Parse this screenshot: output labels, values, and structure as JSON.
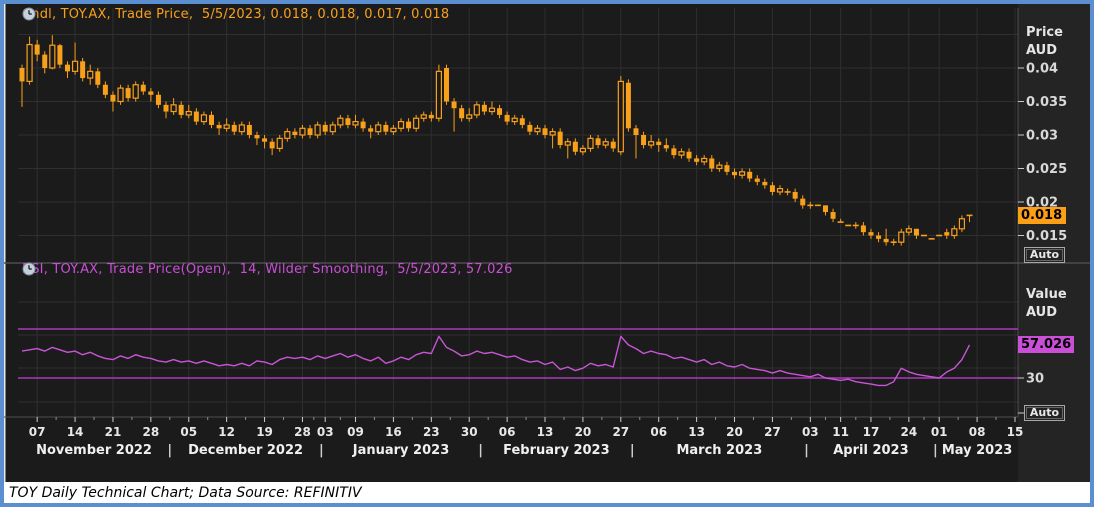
{
  "frame": {
    "caption": "TOY Daily Technical Chart; Data Source: REFINITIV"
  },
  "price_panel": {
    "legend": "Cndl, TOY.AX, Trade Price,  5/5/2023, 0.018, 0.018, 0.017, 0.018",
    "axis_title": "Price",
    "axis_currency": "AUD",
    "last_price": "0.018",
    "auto": "Auto"
  },
  "rsi_panel": {
    "legend": "RSI, TOY.AX, Trade Price(Open),  14, Wilder Smoothing,  5/5/2023, 57.026",
    "axis_title": "Value",
    "axis_currency": "AUD",
    "last_value": "57.026",
    "auto": "Auto"
  },
  "colors": {
    "background": "#1b1b1b",
    "axis_strip": "#242424",
    "grid": "#2f2f2f",
    "frame_border": "#5b8fd0",
    "candle_orange": "#f9a01b",
    "rsi_line": "#c855d6",
    "rsi_band": "#a93bb8",
    "axis_text": "#d9d9d9",
    "divider": "#4d4d4d",
    "badge_price_bg": "#fa9f16",
    "badge_rsi_bg": "#c94fd6"
  },
  "x_axis": {
    "day_ticks": [
      [
        "07",
        2
      ],
      [
        "14",
        7
      ],
      [
        "21",
        12
      ],
      [
        "28",
        17
      ],
      [
        "05",
        22
      ],
      [
        "12",
        27
      ],
      [
        "19",
        32
      ],
      [
        "28",
        37
      ],
      [
        "03",
        40
      ],
      [
        "09",
        44
      ],
      [
        "16",
        49
      ],
      [
        "23",
        54
      ],
      [
        "30",
        59
      ],
      [
        "06",
        64
      ],
      [
        "13",
        69
      ],
      [
        "20",
        74
      ],
      [
        "27",
        79
      ],
      [
        "06",
        84
      ],
      [
        "13",
        89
      ],
      [
        "20",
        94
      ],
      [
        "27",
        99
      ],
      [
        "03",
        104
      ],
      [
        "11",
        108
      ],
      [
        "17",
        112
      ],
      [
        "24",
        117
      ],
      [
        "01",
        121
      ],
      [
        "08",
        126
      ],
      [
        "15",
        131
      ]
    ],
    "months": [
      {
        "label": "November 2022",
        "start": 0,
        "end": 19
      },
      {
        "label": "December 2022",
        "start": 20,
        "end": 39
      },
      {
        "label": "January 2023",
        "start": 40,
        "end": 60
      },
      {
        "label": "February 2023",
        "start": 61,
        "end": 80
      },
      {
        "label": "March 2023",
        "start": 81,
        "end": 103
      },
      {
        "label": "April 2023",
        "start": 104,
        "end": 120
      },
      {
        "label": "May 2023",
        "start": 121,
        "end": 131
      }
    ]
  },
  "chart_data": [
    {
      "type": "candlestick",
      "title": "Cndl, TOY.AX, Trade Price, 5/5/2023, 0.018, 0.018, 0.017, 0.018",
      "ylabel": "Price AUD",
      "y_ticks": [
        0.04,
        0.035,
        0.03,
        0.025,
        0.02,
        0.015
      ],
      "grid_levels": [
        0.045,
        0.04,
        0.035,
        0.03,
        0.025,
        0.02,
        0.015
      ],
      "ylim": [
        0.012,
        0.0495
      ],
      "last_trade": {
        "date": "5/5/2023",
        "open": 0.018,
        "high": 0.018,
        "low": 0.017,
        "close": 0.018
      },
      "ohlc": [
        [
          0.04,
          0.0405,
          0.0342,
          0.038
        ],
        [
          0.038,
          0.0447,
          0.0375,
          0.0435
        ],
        [
          0.0435,
          0.0442,
          0.041,
          0.042
        ],
        [
          0.042,
          0.0425,
          0.0392,
          0.04
        ],
        [
          0.04,
          0.0449,
          0.0398,
          0.0434
        ],
        [
          0.0434,
          0.0436,
          0.04,
          0.0405
        ],
        [
          0.0405,
          0.041,
          0.0385,
          0.0395
        ],
        [
          0.0395,
          0.0438,
          0.039,
          0.041
        ],
        [
          0.041,
          0.0415,
          0.038,
          0.0385
        ],
        [
          0.0385,
          0.0405,
          0.0375,
          0.0395
        ],
        [
          0.0395,
          0.04,
          0.037,
          0.0375
        ],
        [
          0.0375,
          0.038,
          0.0355,
          0.036
        ],
        [
          0.036,
          0.0365,
          0.0335,
          0.035
        ],
        [
          0.035,
          0.0375,
          0.0345,
          0.037
        ],
        [
          0.037,
          0.0375,
          0.035,
          0.0355
        ],
        [
          0.0355,
          0.038,
          0.035,
          0.0375
        ],
        [
          0.0375,
          0.038,
          0.036,
          0.0365
        ],
        [
          0.0365,
          0.037,
          0.035,
          0.036
        ],
        [
          0.036,
          0.0365,
          0.034,
          0.0345
        ],
        [
          0.0345,
          0.035,
          0.0325,
          0.0335
        ],
        [
          0.0335,
          0.0355,
          0.033,
          0.0345
        ],
        [
          0.0345,
          0.035,
          0.0325,
          0.033
        ],
        [
          0.033,
          0.0345,
          0.0325,
          0.0335
        ],
        [
          0.0335,
          0.034,
          0.0315,
          0.032
        ],
        [
          0.032,
          0.0335,
          0.0315,
          0.033
        ],
        [
          0.033,
          0.0335,
          0.031,
          0.0315
        ],
        [
          0.0315,
          0.032,
          0.03,
          0.031
        ],
        [
          0.031,
          0.0325,
          0.0305,
          0.0315
        ],
        [
          0.0315,
          0.032,
          0.03,
          0.0305
        ],
        [
          0.0305,
          0.032,
          0.03,
          0.0315
        ],
        [
          0.0315,
          0.032,
          0.0295,
          0.03
        ],
        [
          0.03,
          0.0305,
          0.0285,
          0.0295
        ],
        [
          0.0295,
          0.03,
          0.028,
          0.029
        ],
        [
          0.029,
          0.0295,
          0.027,
          0.028
        ],
        [
          0.028,
          0.03,
          0.0275,
          0.0295
        ],
        [
          0.0295,
          0.031,
          0.029,
          0.0305
        ],
        [
          0.0305,
          0.031,
          0.0295,
          0.03
        ],
        [
          0.03,
          0.0315,
          0.0295,
          0.031
        ],
        [
          0.031,
          0.0315,
          0.0295,
          0.03
        ],
        [
          0.03,
          0.032,
          0.0295,
          0.0315
        ],
        [
          0.0315,
          0.032,
          0.03,
          0.0305
        ],
        [
          0.0305,
          0.032,
          0.03,
          0.0315
        ],
        [
          0.0315,
          0.033,
          0.031,
          0.0325
        ],
        [
          0.0325,
          0.033,
          0.031,
          0.0315
        ],
        [
          0.0315,
          0.033,
          0.031,
          0.032
        ],
        [
          0.032,
          0.0325,
          0.0305,
          0.031
        ],
        [
          0.031,
          0.0315,
          0.0295,
          0.0305
        ],
        [
          0.0305,
          0.032,
          0.03,
          0.0315
        ],
        [
          0.0315,
          0.032,
          0.03,
          0.0305
        ],
        [
          0.0305,
          0.0315,
          0.03,
          0.031
        ],
        [
          0.031,
          0.0325,
          0.0305,
          0.032
        ],
        [
          0.032,
          0.0325,
          0.0305,
          0.031
        ],
        [
          0.031,
          0.033,
          0.0305,
          0.0325
        ],
        [
          0.0325,
          0.0335,
          0.032,
          0.033
        ],
        [
          0.033,
          0.0335,
          0.032,
          0.0325
        ],
        [
          0.0325,
          0.0405,
          0.032,
          0.0395
        ],
        [
          0.04,
          0.0405,
          0.0345,
          0.035
        ],
        [
          0.035,
          0.0355,
          0.0305,
          0.034
        ],
        [
          0.034,
          0.0345,
          0.032,
          0.0325
        ],
        [
          0.0325,
          0.034,
          0.032,
          0.033
        ],
        [
          0.033,
          0.035,
          0.0325,
          0.0345
        ],
        [
          0.0345,
          0.035,
          0.033,
          0.0335
        ],
        [
          0.0335,
          0.035,
          0.033,
          0.034
        ],
        [
          0.034,
          0.0345,
          0.0325,
          0.033
        ],
        [
          0.033,
          0.0335,
          0.0315,
          0.032
        ],
        [
          0.032,
          0.033,
          0.0315,
          0.0325
        ],
        [
          0.0325,
          0.033,
          0.031,
          0.0315
        ],
        [
          0.0315,
          0.032,
          0.03,
          0.0305
        ],
        [
          0.0305,
          0.0315,
          0.03,
          0.031
        ],
        [
          0.031,
          0.0315,
          0.0295,
          0.03
        ],
        [
          0.03,
          0.031,
          0.028,
          0.0305
        ],
        [
          0.0305,
          0.031,
          0.028,
          0.0285
        ],
        [
          0.0285,
          0.0295,
          0.0265,
          0.029
        ],
        [
          0.029,
          0.0295,
          0.027,
          0.0275
        ],
        [
          0.0275,
          0.0285,
          0.027,
          0.028
        ],
        [
          0.028,
          0.03,
          0.0275,
          0.0295
        ],
        [
          0.0295,
          0.03,
          0.028,
          0.0285
        ],
        [
          0.0285,
          0.0295,
          0.028,
          0.029
        ],
        [
          0.029,
          0.0295,
          0.0275,
          0.028
        ],
        [
          0.0275,
          0.0388,
          0.027,
          0.038
        ],
        [
          0.0378,
          0.0383,
          0.0305,
          0.031
        ],
        [
          0.031,
          0.0315,
          0.0265,
          0.03
        ],
        [
          0.03,
          0.0305,
          0.028,
          0.0285
        ],
        [
          0.0285,
          0.03,
          0.028,
          0.029
        ],
        [
          0.029,
          0.0295,
          0.0275,
          0.0285
        ],
        [
          0.0285,
          0.0295,
          0.0275,
          0.028
        ],
        [
          0.028,
          0.0285,
          0.0265,
          0.027
        ],
        [
          0.027,
          0.028,
          0.0265,
          0.0275
        ],
        [
          0.0275,
          0.028,
          0.026,
          0.0265
        ],
        [
          0.0265,
          0.027,
          0.0255,
          0.026
        ],
        [
          0.026,
          0.027,
          0.0255,
          0.0265
        ],
        [
          0.0265,
          0.027,
          0.0245,
          0.025
        ],
        [
          0.025,
          0.026,
          0.0245,
          0.0255
        ],
        [
          0.0255,
          0.026,
          0.024,
          0.0245
        ],
        [
          0.0245,
          0.025,
          0.0235,
          0.024
        ],
        [
          0.024,
          0.025,
          0.0235,
          0.0245
        ],
        [
          0.0245,
          0.025,
          0.023,
          0.0235
        ],
        [
          0.0235,
          0.024,
          0.0225,
          0.023
        ],
        [
          0.023,
          0.0235,
          0.022,
          0.0225
        ],
        [
          0.0225,
          0.023,
          0.021,
          0.0215
        ],
        [
          0.0215,
          0.0225,
          0.021,
          0.022
        ],
        [
          0.0215,
          0.022,
          0.021,
          0.0215
        ],
        [
          0.0215,
          0.022,
          0.02,
          0.0205
        ],
        [
          0.0205,
          0.021,
          0.019,
          0.0195
        ],
        [
          0.0195,
          0.02,
          0.019,
          0.0195
        ],
        [
          0.0195,
          0.0195,
          0.0195,
          0.0195
        ],
        [
          0.0195,
          0.0195,
          0.018,
          0.0185
        ],
        [
          0.0185,
          0.019,
          0.017,
          0.0175
        ],
        [
          0.017,
          0.0175,
          0.017,
          0.017
        ],
        [
          0.0165,
          0.0165,
          0.0165,
          0.0165
        ],
        [
          0.0165,
          0.017,
          0.016,
          0.0165
        ],
        [
          0.0165,
          0.017,
          0.015,
          0.0155
        ],
        [
          0.0155,
          0.016,
          0.0145,
          0.015
        ],
        [
          0.015,
          0.0155,
          0.014,
          0.0145
        ],
        [
          0.0145,
          0.016,
          0.0135,
          0.014
        ],
        [
          0.014,
          0.0145,
          0.0135,
          0.014
        ],
        [
          0.014,
          0.016,
          0.0135,
          0.0155
        ],
        [
          0.0155,
          0.0165,
          0.015,
          0.016
        ],
        [
          0.016,
          0.016,
          0.0145,
          0.015
        ],
        [
          0.015,
          0.015,
          0.015,
          0.015
        ],
        [
          0.0145,
          0.0145,
          0.0145,
          0.0145
        ],
        [
          0.015,
          0.015,
          0.015,
          0.015
        ],
        [
          0.0155,
          0.016,
          0.0145,
          0.015
        ],
        [
          0.015,
          0.0165,
          0.0145,
          0.016
        ],
        [
          0.016,
          0.018,
          0.0155,
          0.0175
        ],
        [
          0.018,
          0.018,
          0.017,
          0.018
        ]
      ]
    },
    {
      "type": "line",
      "title": "RSI, TOY.AX, Trade Price(Open), 14, Wilder Smoothing, 5/5/2023, 57.026",
      "ylabel": "Value AUD",
      "y_ticks": [
        30
      ],
      "bands": [
        70,
        30
      ],
      "ylim": [
        0,
        100
      ],
      "last_value": 57.026,
      "values": [
        52,
        53,
        54,
        52,
        55,
        53,
        51,
        52,
        49,
        51,
        48,
        46,
        45,
        48,
        46,
        49,
        47,
        46,
        44,
        43,
        45,
        43,
        44,
        42,
        44,
        42,
        40,
        41,
        40,
        42,
        40,
        44,
        43,
        41,
        45,
        47,
        46,
        47,
        45,
        48,
        46,
        48,
        50,
        47,
        49,
        46,
        44,
        47,
        42,
        44,
        47,
        45,
        49,
        51,
        50,
        64,
        55,
        52,
        48,
        49,
        52,
        50,
        51,
        49,
        47,
        48,
        45,
        43,
        44,
        41,
        43,
        37,
        39,
        36,
        38,
        42,
        40,
        41,
        39,
        64,
        57,
        54,
        50,
        52,
        50,
        49,
        46,
        47,
        45,
        43,
        45,
        41,
        43,
        40,
        39,
        41,
        38,
        37,
        36,
        34,
        36,
        34,
        33,
        32,
        31,
        33,
        30,
        29,
        28,
        29,
        27,
        26,
        25,
        24,
        24,
        27,
        38,
        35,
        33,
        32,
        31,
        30,
        35,
        38,
        45,
        57.026
      ]
    }
  ]
}
